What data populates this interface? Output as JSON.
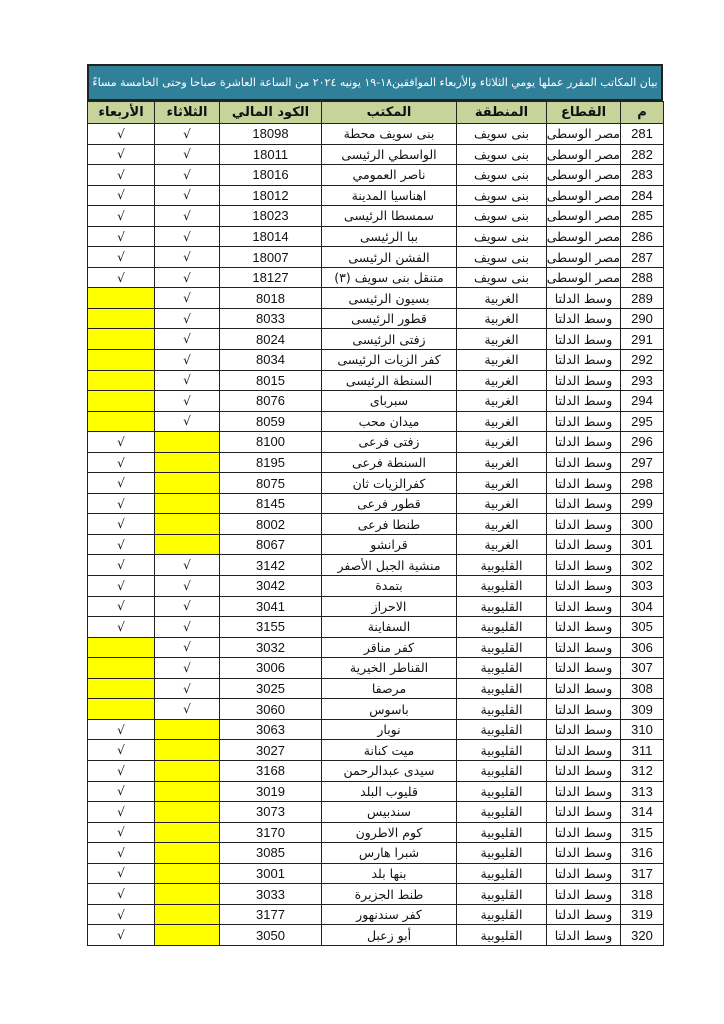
{
  "title": "بيان المكاتب المقرر عملها يومي  الثلاثاء والأربعاء  الموافقين١٨-١٩ يونيه ٢٠٢٤ من الساعة العاشرة صباحا وحتى الخامسة مساءً",
  "columns": {
    "wed": "الأربعاء",
    "tue": "الثلاثاء",
    "code": "الكود المالي",
    "office": "المكتب",
    "region": "المنطقة",
    "sector": "القطاع",
    "no": "م"
  },
  "check_mark": "√",
  "highlight_color": "#ffff00",
  "rows": [
    {
      "no": "281",
      "sector": "مصر الوسطى",
      "region": "بنى سويف",
      "office": "بنى سويف محطة",
      "code": "18098",
      "tue": true,
      "wed": true
    },
    {
      "no": "282",
      "sector": "مصر الوسطى",
      "region": "بنى سويف",
      "office": "الواسطي الرئيسى",
      "code": "18011",
      "tue": true,
      "wed": true
    },
    {
      "no": "283",
      "sector": "مصر الوسطى",
      "region": "بنى سويف",
      "office": "ناصر العمومي",
      "code": "18016",
      "tue": true,
      "wed": true
    },
    {
      "no": "284",
      "sector": "مصر الوسطى",
      "region": "بنى سويف",
      "office": "اهناسيا المدينة",
      "code": "18012",
      "tue": true,
      "wed": true
    },
    {
      "no": "285",
      "sector": "مصر الوسطى",
      "region": "بنى سويف",
      "office": "سمسطا الرئيسى",
      "code": "18023",
      "tue": true,
      "wed": true
    },
    {
      "no": "286",
      "sector": "مصر الوسطى",
      "region": "بنى سويف",
      "office": "ببا الرئيسى",
      "code": "18014",
      "tue": true,
      "wed": true
    },
    {
      "no": "287",
      "sector": "مصر الوسطى",
      "region": "بنى سويف",
      "office": "الفشن الرئيسى",
      "code": "18007",
      "tue": true,
      "wed": true
    },
    {
      "no": "288",
      "sector": "مصر الوسطى",
      "region": "بنى سويف",
      "office": "متنقل بنى سويف (٣)",
      "code": "18127",
      "tue": true,
      "wed": true
    },
    {
      "no": "289",
      "sector": "وسط الدلتا",
      "region": "الغربية",
      "office": "بسيون الرئيسى",
      "code": "8018",
      "tue": true,
      "wed": false
    },
    {
      "no": "290",
      "sector": "وسط الدلتا",
      "region": "الغربية",
      "office": "قطور الرئيسى",
      "code": "8033",
      "tue": true,
      "wed": false
    },
    {
      "no": "291",
      "sector": "وسط الدلتا",
      "region": "الغربية",
      "office": "زفتى الرئيسى",
      "code": "8024",
      "tue": true,
      "wed": false
    },
    {
      "no": "292",
      "sector": "وسط الدلتا",
      "region": "الغربية",
      "office": "كفر الزيات الرئيسى",
      "code": "8034",
      "tue": true,
      "wed": false
    },
    {
      "no": "293",
      "sector": "وسط الدلتا",
      "region": "الغربية",
      "office": "السنطة الرئيسى",
      "code": "8015",
      "tue": true,
      "wed": false
    },
    {
      "no": "294",
      "sector": "وسط الدلتا",
      "region": "الغربية",
      "office": "سبرباى",
      "code": "8076",
      "tue": true,
      "wed": false
    },
    {
      "no": "295",
      "sector": "وسط الدلتا",
      "region": "الغربية",
      "office": "ميدان محب",
      "code": "8059",
      "tue": true,
      "wed": false
    },
    {
      "no": "296",
      "sector": "وسط الدلتا",
      "region": "الغربية",
      "office": "زفتى فرعى",
      "code": "8100",
      "tue": false,
      "wed": true
    },
    {
      "no": "297",
      "sector": "وسط الدلتا",
      "region": "الغربية",
      "office": "السنطة فرعى",
      "code": "8195",
      "tue": false,
      "wed": true
    },
    {
      "no": "298",
      "sector": "وسط الدلتا",
      "region": "الغربية",
      "office": "كفرالزيات ثان",
      "code": "8075",
      "tue": false,
      "wed": true
    },
    {
      "no": "299",
      "sector": "وسط الدلتا",
      "region": "الغربية",
      "office": "قطور فرعى",
      "code": "8145",
      "tue": false,
      "wed": true
    },
    {
      "no": "300",
      "sector": "وسط الدلتا",
      "region": "الغربية",
      "office": "طنطا فرعى",
      "code": "8002",
      "tue": false,
      "wed": true
    },
    {
      "no": "301",
      "sector": "وسط الدلتا",
      "region": "الغربية",
      "office": "قرانشو",
      "code": "8067",
      "tue": false,
      "wed": true
    },
    {
      "no": "302",
      "sector": "وسط الدلتا",
      "region": "القليوبية",
      "office": "منشية الجبل الأصفر",
      "code": "3142",
      "tue": true,
      "wed": true
    },
    {
      "no": "303",
      "sector": "وسط الدلتا",
      "region": "القليوبية",
      "office": "بتمدة",
      "code": "3042",
      "tue": true,
      "wed": true
    },
    {
      "no": "304",
      "sector": "وسط الدلتا",
      "region": "القليوبية",
      "office": "الاحراز",
      "code": "3041",
      "tue": true,
      "wed": true
    },
    {
      "no": "305",
      "sector": "وسط الدلتا",
      "region": "القليوبية",
      "office": "السفاينة",
      "code": "3155",
      "tue": true,
      "wed": true
    },
    {
      "no": "306",
      "sector": "وسط الدلتا",
      "region": "القليوبية",
      "office": "كفر مناقر",
      "code": "3032",
      "tue": true,
      "wed": false
    },
    {
      "no": "307",
      "sector": "وسط الدلتا",
      "region": "القليوبية",
      "office": "القناطر الخيرية",
      "code": "3006",
      "tue": true,
      "wed": false
    },
    {
      "no": "308",
      "sector": "وسط الدلتا",
      "region": "القليوبية",
      "office": "مرصفا",
      "code": "3025",
      "tue": true,
      "wed": false
    },
    {
      "no": "309",
      "sector": "وسط الدلتا",
      "region": "القليوبية",
      "office": "باسوس",
      "code": "3060",
      "tue": true,
      "wed": false
    },
    {
      "no": "310",
      "sector": "وسط الدلتا",
      "region": "القليوبية",
      "office": "نوبار",
      "code": "3063",
      "tue": false,
      "wed": true
    },
    {
      "no": "311",
      "sector": "وسط الدلتا",
      "region": "القليوبية",
      "office": "ميت كنانة",
      "code": "3027",
      "tue": false,
      "wed": true
    },
    {
      "no": "312",
      "sector": "وسط الدلتا",
      "region": "القليوبية",
      "office": "سيدى عبدالرحمن",
      "code": "3168",
      "tue": false,
      "wed": true
    },
    {
      "no": "313",
      "sector": "وسط الدلتا",
      "region": "القليوبية",
      "office": "قليوب البلد",
      "code": "3019",
      "tue": false,
      "wed": true
    },
    {
      "no": "314",
      "sector": "وسط الدلتا",
      "region": "القليوبية",
      "office": "سندبيس",
      "code": "3073",
      "tue": false,
      "wed": true
    },
    {
      "no": "315",
      "sector": "وسط الدلتا",
      "region": "القليوبية",
      "office": "كوم الاطرون",
      "code": "3170",
      "tue": false,
      "wed": true
    },
    {
      "no": "316",
      "sector": "وسط الدلتا",
      "region": "القليوبية",
      "office": "شبرا هارس",
      "code": "3085",
      "tue": false,
      "wed": true
    },
    {
      "no": "317",
      "sector": "وسط الدلتا",
      "region": "القليوبية",
      "office": "بنها بلد",
      "code": "3001",
      "tue": false,
      "wed": true
    },
    {
      "no": "318",
      "sector": "وسط الدلتا",
      "region": "القليوبية",
      "office": "طنط الجزيرة",
      "code": "3033",
      "tue": false,
      "wed": true
    },
    {
      "no": "319",
      "sector": "وسط الدلتا",
      "region": "القليوبية",
      "office": "كفر سندنهور",
      "code": "3177",
      "tue": false,
      "wed": true
    },
    {
      "no": "320",
      "sector": "وسط الدلتا",
      "region": "القليوبية",
      "office": "أبو زعبل",
      "code": "3050",
      "tue": false,
      "wed": true
    }
  ]
}
